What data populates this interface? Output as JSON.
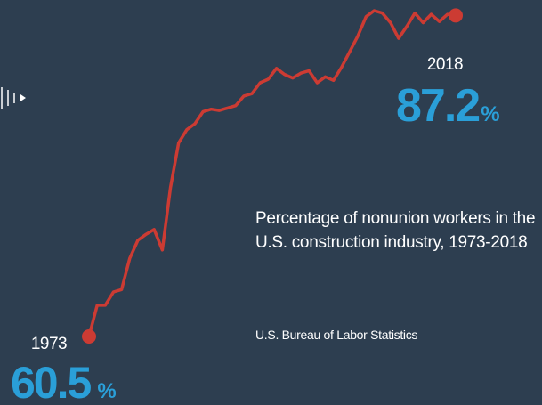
{
  "chart_data": {
    "type": "line",
    "title": "Percentage of nonunion workers in the U.S. construction industry, 1973-2018",
    "source": "U.S. Bureau of Labor Statistics",
    "unit": "%",
    "color": "#cc3b33",
    "label_color": "#2a9fd8",
    "x": [
      1973,
      1974,
      1975,
      1976,
      1977,
      1978,
      1979,
      1980,
      1981,
      1982,
      1983,
      1984,
      1985,
      1986,
      1987,
      1988,
      1989,
      1990,
      1991,
      1992,
      1993,
      1994,
      1995,
      1996,
      1997,
      1998,
      1999,
      2000,
      2001,
      2002,
      2003,
      2004,
      2005,
      2006,
      2007,
      2008,
      2009,
      2010,
      2011,
      2012,
      2013,
      2014,
      2015,
      2016,
      2017,
      2018
    ],
    "values": [
      60.5,
      63.1,
      63.1,
      64.2,
      64.4,
      67.0,
      68.5,
      69.0,
      69.4,
      67.7,
      72.9,
      76.6,
      77.7,
      78.2,
      79.2,
      79.4,
      79.3,
      79.5,
      79.7,
      80.5,
      80.7,
      81.6,
      81.9,
      82.8,
      82.3,
      82.0,
      82.4,
      82.6,
      81.6,
      82.1,
      81.8,
      82.9,
      84.2,
      85.5,
      87.1,
      87.6,
      87.4,
      86.6,
      85.3,
      86.3,
      87.4,
      86.6,
      87.3,
      86.7,
      87.3,
      87.2
    ]
  }
}
